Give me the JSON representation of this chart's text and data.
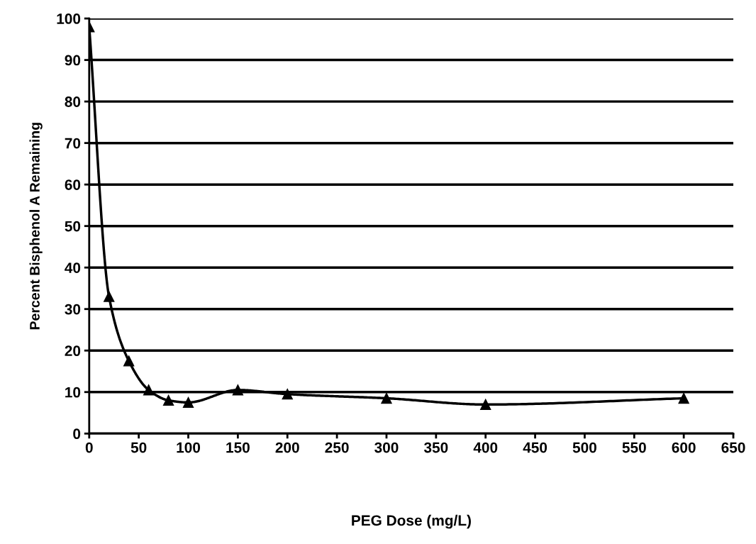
{
  "chart_data": {
    "type": "line",
    "xlabel": "PEG Dose (mg/L)",
    "ylabel": "Percent Bisphenol A Remaining",
    "x": [
      0,
      20,
      40,
      60,
      80,
      100,
      150,
      200,
      300,
      400,
      600
    ],
    "series": [
      {
        "color": "#000000",
        "values": [
          98,
          33,
          17.5,
          10.5,
          8,
          7.5,
          10.5,
          9.5,
          8.5,
          7,
          8.5
        ]
      }
    ],
    "xlim": [
      0,
      650
    ],
    "xticks": [
      0,
      50,
      100,
      150,
      200,
      250,
      300,
      350,
      400,
      450,
      500,
      550,
      600,
      650
    ],
    "ylim": [
      0,
      100
    ],
    "yticks": [
      0,
      10,
      20,
      30,
      40,
      50,
      60,
      70,
      80,
      90,
      100
    ],
    "grid": "y",
    "legend": false,
    "marker": "triangle",
    "line_style": "solid"
  }
}
